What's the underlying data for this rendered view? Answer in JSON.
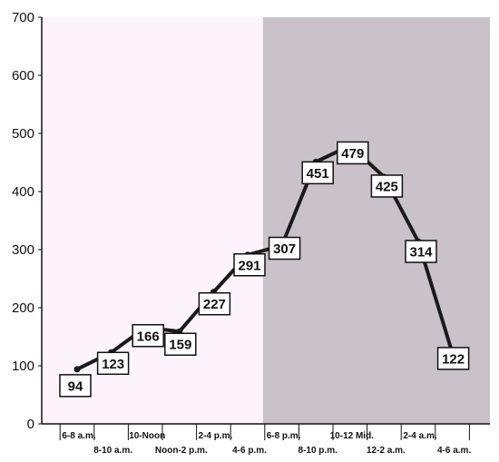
{
  "chart_data": {
    "type": "line",
    "categories": [
      "6-8 a.m.",
      "8-10 a.m.",
      "10-Noon",
      "Noon-2 p.m.",
      "2-4 p.m.",
      "4-6 p.m.",
      "6-8 p.m.",
      "8-10 p.m.",
      "10-12 Mid.",
      "12-2 a.m.",
      "2-4 a.m.",
      "4-6 a.m."
    ],
    "values": [
      94,
      123,
      166,
      159,
      227,
      291,
      307,
      451,
      479,
      425,
      314,
      122
    ],
    "title": "",
    "xlabel": "",
    "ylabel": "",
    "ylim": [
      0,
      700
    ],
    "yticks": [
      0,
      100,
      200,
      300,
      400,
      500,
      600,
      700
    ],
    "grid": false,
    "legend": "none",
    "shaded_region": {
      "from_category": "6-8 p.m.",
      "to_category": "4-6 a.m."
    },
    "colors": {
      "line": "#1a1a1a",
      "day_background": "#fdf4fb",
      "night_background": "#c9c3c9",
      "label_box": "#ffffff"
    }
  }
}
